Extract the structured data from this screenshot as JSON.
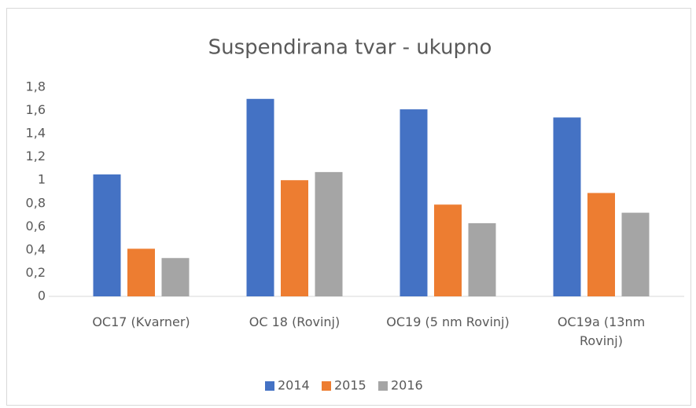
{
  "chart_data": {
    "type": "bar",
    "title": "Suspendirana tvar - ukupno",
    "categories": [
      "OC17 (Kvarner)",
      "OC 18 (Rovinj)",
      "OC19 (5 nm Rovinj)",
      "OC19a (13nm Rovinj)"
    ],
    "series": [
      {
        "name": "2014",
        "color": "#4472c4",
        "values": [
          1.05,
          1.7,
          1.61,
          1.54
        ]
      },
      {
        "name": "2015",
        "color": "#ed7d31",
        "values": [
          0.41,
          1.0,
          0.79,
          0.89
        ]
      },
      {
        "name": "2016",
        "color": "#a5a5a5",
        "values": [
          0.33,
          1.07,
          0.63,
          0.72
        ]
      }
    ],
    "ylim": [
      0,
      1.8
    ],
    "yticks": [
      0,
      {
        "value": 0.2,
        "label": "0,2"
      },
      {
        "value": 0.4,
        "label": "0,4"
      },
      {
        "value": 0.6,
        "label": "0,6"
      },
      {
        "value": 0.8,
        "label": "0,8"
      },
      1,
      {
        "value": 1.2,
        "label": "1,2"
      },
      {
        "value": 1.4,
        "label": "1,4"
      },
      {
        "value": 1.6,
        "label": "1,6"
      },
      {
        "value": 1.8,
        "label": "1,8"
      }
    ],
    "grid": false,
    "legend": "bottom"
  }
}
